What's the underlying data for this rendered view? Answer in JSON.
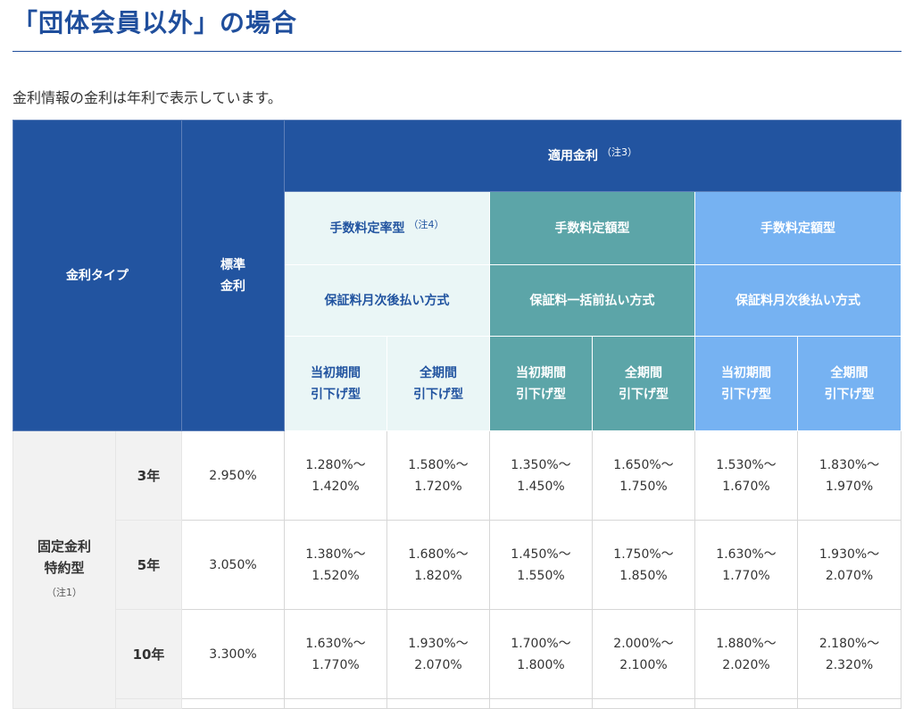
{
  "heading": "「団体会員以外」の場合",
  "intro": "金利情報の金利は年利で表示しています。",
  "header": {
    "rate_type": "金利タイプ",
    "standard_rate_line1": "標準",
    "standard_rate_line2": "金利",
    "applied_rate": "適用金利",
    "applied_rate_note": "（注3）",
    "plans": [
      {
        "fee_type": "手数料定率型",
        "fee_note": "（注4）",
        "guarantee": "保証料月次後払い方式"
      },
      {
        "fee_type": "手数料定額型",
        "fee_note": "",
        "guarantee": "保証料一括前払い方式"
      },
      {
        "fee_type": "手数料定額型",
        "fee_note": "",
        "guarantee": "保証料月次後払い方式"
      }
    ],
    "reduction": {
      "initial_line1": "当初期間",
      "full_line1": "全期間",
      "line2": "引下げ型"
    }
  },
  "body": {
    "group_label_line1": "固定金利",
    "group_label_line2": "特約型",
    "group_note": "（注1）",
    "rows": [
      {
        "term": "3年",
        "standard": "2.950%",
        "rates": [
          [
            "1.280%～",
            "1.420%"
          ],
          [
            "1.580%～",
            "1.720%"
          ],
          [
            "1.350%～",
            "1.450%"
          ],
          [
            "1.650%～",
            "1.750%"
          ],
          [
            "1.530%～",
            "1.670%"
          ],
          [
            "1.830%～",
            "1.970%"
          ]
        ]
      },
      {
        "term": "5年",
        "standard": "3.050%",
        "rates": [
          [
            "1.380%～",
            "1.520%"
          ],
          [
            "1.680%～",
            "1.820%"
          ],
          [
            "1.450%～",
            "1.550%"
          ],
          [
            "1.750%～",
            "1.850%"
          ],
          [
            "1.630%～",
            "1.770%"
          ],
          [
            "1.930%～",
            "2.070%"
          ]
        ]
      },
      {
        "term": "10年",
        "standard": "3.300%",
        "rates": [
          [
            "1.630%～",
            "1.770%"
          ],
          [
            "1.930%～",
            "2.070%"
          ],
          [
            "1.700%～",
            "1.800%"
          ],
          [
            "2.000%～",
            "2.100%"
          ],
          [
            "1.880%～",
            "2.020%"
          ],
          [
            "2.180%～",
            "2.320%"
          ]
        ]
      }
    ]
  },
  "colors": {
    "header_blue": "#2254a0",
    "pale": "#eaf6f6",
    "teal": "#5ca5a8",
    "light_blue": "#76b2f2"
  }
}
